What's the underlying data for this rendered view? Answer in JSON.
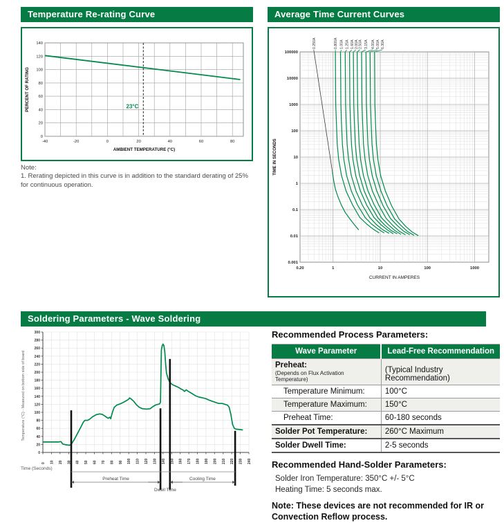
{
  "colors": {
    "header_green": "#067b44",
    "curve_green": "#008a4c",
    "leader_dark": "#3a3a3a",
    "grid_gray": "#9e9e9e",
    "grid_light": "#dedede",
    "grid_major": "#b3b3b3",
    "bar_black": "#111111"
  },
  "rerating": {
    "title": "Temperature Re-rating Curve",
    "note_label": "Note:",
    "note_text": "1. Rerating depicted in this curve is in addition to the standard derating of 25% for continuous operation.",
    "chart_data": {
      "type": "line",
      "xlabel": "AMBIENT TEMPERATURE (°C)",
      "ylabel": "PERCENT OF RATING",
      "xlim": [
        -40,
        87
      ],
      "ylim": [
        0,
        140
      ],
      "xticks": [
        -40,
        -20,
        0,
        20,
        40,
        60,
        80
      ],
      "yticks": [
        0,
        20,
        40,
        60,
        80,
        100,
        120,
        140
      ],
      "x_grid_step": 10,
      "y_grid_step": 20,
      "grid": true,
      "reference_line": {
        "x": 23,
        "label": "23°C"
      },
      "series": [
        {
          "name": "re-rating",
          "color": "#008a4c",
          "points": [
            [
              -40,
              121
            ],
            [
              85,
              85
            ]
          ]
        }
      ]
    }
  },
  "tcc": {
    "title": "Average Time Current Curves",
    "chart_data": {
      "type": "line",
      "xscale": "log",
      "yscale": "log",
      "xlabel": "CURRENT IN AMPERES",
      "ylabel": "TIME IN SECONDS",
      "xlim": [
        0.2,
        2000
      ],
      "ylim": [
        0.001,
        100000
      ],
      "xtick_labels": [
        "0.20",
        "1",
        "10",
        "100",
        "1000"
      ],
      "xticks": [
        0.2,
        1,
        10,
        100,
        1000
      ],
      "ytick_labels": [
        "100000",
        "10000",
        "1000",
        "100",
        "10",
        "1",
        "0.1",
        "0.01",
        "0.001"
      ],
      "yticks": [
        100000,
        10000,
        1000,
        100,
        10,
        1,
        0.1,
        0.01,
        0.001
      ],
      "curves": [
        {
          "label": "0.250A",
          "label_amps": 0.39,
          "color": "#008a4c",
          "leader_color": "#3a3a3a",
          "points": [
            [
              0.97,
              2.7
            ],
            [
              1.03,
              1.3
            ],
            [
              1.12,
              0.6
            ],
            [
              1.28,
              0.3
            ],
            [
              1.5,
              0.15
            ],
            [
              1.8,
              0.08
            ],
            [
              2.2,
              0.048
            ],
            [
              2.7,
              0.03
            ],
            [
              3.1,
              0.022
            ],
            [
              3.5,
              0.017
            ]
          ]
        },
        {
          "label": "0.800A",
          "label_amps": 1.12,
          "color": "#008a4c",
          "points": [
            [
              1.12,
              100000
            ],
            [
              1.14,
              1000
            ],
            [
              1.18,
              200
            ],
            [
              1.23,
              30
            ],
            [
              1.32,
              8
            ],
            [
              1.51,
              2
            ],
            [
              1.9,
              0.5
            ],
            [
              2.6,
              0.15
            ],
            [
              3.7,
              0.05
            ],
            [
              5.2,
              0.028
            ],
            [
              7.1,
              0.018
            ],
            [
              9.5,
              0.013
            ]
          ]
        },
        {
          "label": "1.00A",
          "label_amps": 1.5,
          "color": "#008a4c",
          "points": [
            [
              1.44,
              100000
            ],
            [
              1.47,
              1000
            ],
            [
              1.51,
              200
            ],
            [
              1.58,
              30
            ],
            [
              1.7,
              8
            ],
            [
              1.94,
              2
            ],
            [
              2.45,
              0.5
            ],
            [
              3.3,
              0.15
            ],
            [
              4.8,
              0.05
            ],
            [
              6.6,
              0.028
            ],
            [
              9.1,
              0.018
            ],
            [
              12.2,
              0.013
            ]
          ]
        },
        {
          "label": "1.25A",
          "label_amps": 1.95,
          "color": "#008a4c",
          "points": [
            [
              1.81,
              100000
            ],
            [
              1.85,
              1000
            ],
            [
              1.9,
              200
            ],
            [
              1.99,
              30
            ],
            [
              2.14,
              8
            ],
            [
              2.44,
              2
            ],
            [
              3.08,
              0.5
            ],
            [
              4.16,
              0.15
            ],
            [
              5.97,
              0.05
            ],
            [
              8.3,
              0.027
            ],
            [
              11.4,
              0.017
            ],
            [
              15.4,
              0.0125
            ]
          ]
        },
        {
          "label": "1.60A",
          "label_amps": 2.5,
          "color": "#008a4c",
          "points": [
            [
              2.24,
              100000
            ],
            [
              2.28,
              1000
            ],
            [
              2.35,
              200
            ],
            [
              2.46,
              30
            ],
            [
              2.64,
              8
            ],
            [
              3.02,
              2
            ],
            [
              3.81,
              0.5
            ],
            [
              5.15,
              0.15
            ],
            [
              7.4,
              0.05
            ],
            [
              10.3,
              0.027
            ],
            [
              14.1,
              0.017
            ],
            [
              19,
              0.012
            ]
          ]
        },
        {
          "label": "2.00A",
          "label_amps": 3.05,
          "color": "#008a4c",
          "points": [
            [
              2.7,
              100000
            ],
            [
              2.75,
              1000
            ],
            [
              2.84,
              200
            ],
            [
              2.97,
              30
            ],
            [
              3.19,
              8
            ],
            [
              3.65,
              2
            ],
            [
              4.59,
              0.5
            ],
            [
              6.21,
              0.15
            ],
            [
              8.9,
              0.049
            ],
            [
              12.4,
              0.026
            ],
            [
              17,
              0.016
            ],
            [
              23,
              0.012
            ]
          ]
        },
        {
          "label": "2.50A",
          "label_amps": 3.7,
          "color": "#008a4c",
          "points": [
            [
              3.25,
              100000
            ],
            [
              3.32,
              1000
            ],
            [
              3.41,
              200
            ],
            [
              3.58,
              30
            ],
            [
              3.84,
              8
            ],
            [
              4.39,
              2
            ],
            [
              5.53,
              0.5
            ],
            [
              7.48,
              0.15
            ],
            [
              10.7,
              0.048
            ],
            [
              15,
              0.026
            ],
            [
              20.5,
              0.016
            ],
            [
              27.6,
              0.0115
            ]
          ]
        },
        {
          "label": "3.15A",
          "label_amps": 4.9,
          "color": "#008a4c",
          "points": [
            [
              4.03,
              100000
            ],
            [
              4.11,
              1000
            ],
            [
              4.23,
              200
            ],
            [
              4.43,
              30
            ],
            [
              4.76,
              8
            ],
            [
              5.44,
              2
            ],
            [
              6.85,
              0.5
            ],
            [
              9.27,
              0.15
            ],
            [
              13.3,
              0.047
            ],
            [
              18.5,
              0.025
            ],
            [
              25.4,
              0.015
            ],
            [
              34.3,
              0.011
            ]
          ]
        },
        {
          "label": "4.00A",
          "label_amps": 6.9,
          "color": "#008a4c",
          "points": [
            [
              5,
              100000
            ],
            [
              5.1,
              1000
            ],
            [
              5.25,
              200
            ],
            [
              5.5,
              30
            ],
            [
              5.9,
              8
            ],
            [
              6.75,
              2
            ],
            [
              8.5,
              0.5
            ],
            [
              11.5,
              0.14
            ],
            [
              16.5,
              0.046
            ],
            [
              23,
              0.025
            ],
            [
              31.5,
              0.015
            ],
            [
              42.5,
              0.011
            ]
          ]
        },
        {
          "label": "5.00A",
          "label_amps": 8.7,
          "color": "#008a4c",
          "points": [
            [
              6.1,
              100000
            ],
            [
              6.22,
              1000
            ],
            [
              6.41,
              200
            ],
            [
              6.71,
              30
            ],
            [
              7.2,
              8
            ],
            [
              8.24,
              2
            ],
            [
              10.4,
              0.5
            ],
            [
              14,
              0.14
            ],
            [
              20.1,
              0.045
            ],
            [
              28.1,
              0.024
            ],
            [
              38.4,
              0.0145
            ],
            [
              51.9,
              0.0105
            ]
          ]
        },
        {
          "label": "6.30A",
          "label_amps": 11.0,
          "color": "#008a4c",
          "points": [
            [
              7.56,
              100000
            ],
            [
              7.71,
              1000
            ],
            [
              7.94,
              200
            ],
            [
              8.32,
              30
            ],
            [
              8.92,
              8
            ],
            [
              10.2,
              2
            ],
            [
              12.9,
              0.5
            ],
            [
              17.4,
              0.14
            ],
            [
              25,
              0.044
            ],
            [
              34.8,
              0.023
            ],
            [
              47.6,
              0.014
            ],
            [
              64.3,
              0.0102
            ]
          ]
        }
      ]
    }
  },
  "soldering": {
    "title": "Soldering Parameters - Wave Soldering",
    "chart_data": {
      "type": "line",
      "xlabel": "Time (Seconds)",
      "ylabel": "Temperature (°C) - Measured on bottom side of board",
      "xlim": [
        0,
        240
      ],
      "ylim": [
        0,
        300
      ],
      "xticks": [
        0,
        10,
        20,
        30,
        40,
        50,
        60,
        70,
        80,
        90,
        100,
        110,
        120,
        130,
        140,
        150,
        160,
        170,
        180,
        190,
        200,
        210,
        220,
        230,
        240
      ],
      "yticks": [
        0,
        20,
        40,
        60,
        80,
        100,
        120,
        140,
        160,
        180,
        200,
        220,
        240,
        260,
        280,
        300
      ],
      "grid": true,
      "profile": [
        [
          0,
          26
        ],
        [
          10,
          26
        ],
        [
          18,
          26
        ],
        [
          21,
          27
        ],
        [
          23,
          21
        ],
        [
          27,
          19
        ],
        [
          31,
          18
        ],
        [
          33,
          20
        ],
        [
          36,
          30
        ],
        [
          40,
          46
        ],
        [
          44,
          62
        ],
        [
          47,
          75
        ],
        [
          49,
          80
        ],
        [
          52,
          80
        ],
        [
          54,
          82
        ],
        [
          58,
          89
        ],
        [
          62,
          94
        ],
        [
          66,
          96
        ],
        [
          69,
          95
        ],
        [
          72,
          91
        ],
        [
          74,
          88
        ],
        [
          76,
          85
        ],
        [
          78,
          88
        ],
        [
          79,
          84
        ],
        [
          81,
          100
        ],
        [
          83,
          112
        ],
        [
          86,
          118
        ],
        [
          90,
          121
        ],
        [
          94,
          125
        ],
        [
          98,
          130
        ],
        [
          100,
          133
        ],
        [
          101,
          136
        ],
        [
          103,
          133
        ],
        [
          106,
          127
        ],
        [
          109,
          119
        ],
        [
          112,
          113
        ],
        [
          116,
          109
        ],
        [
          121,
          108
        ],
        [
          125,
          109
        ],
        [
          128,
          114
        ],
        [
          131,
          118
        ],
        [
          134,
          120
        ],
        [
          136,
          121
        ],
        [
          137,
          125
        ],
        [
          138,
          255
        ],
        [
          139,
          266
        ],
        [
          140,
          270
        ],
        [
          141,
          266
        ],
        [
          142,
          252
        ],
        [
          143,
          220
        ],
        [
          144,
          198
        ],
        [
          146,
          183
        ],
        [
          148,
          174
        ],
        [
          151,
          169
        ],
        [
          155,
          165
        ],
        [
          158,
          162
        ],
        [
          161,
          158
        ],
        [
          163,
          156
        ],
        [
          165,
          152
        ],
        [
          167,
          156
        ],
        [
          169,
          153
        ],
        [
          172,
          149
        ],
        [
          175,
          145
        ],
        [
          178,
          141
        ],
        [
          182,
          138
        ],
        [
          186,
          136
        ],
        [
          190,
          134
        ],
        [
          194,
          130
        ],
        [
          198,
          127
        ],
        [
          202,
          124
        ],
        [
          205,
          122
        ],
        [
          209,
          122
        ],
        [
          212,
          120
        ],
        [
          215,
          118
        ],
        [
          217,
          113
        ],
        [
          219,
          95
        ],
        [
          221,
          70
        ],
        [
          223,
          60
        ],
        [
          225,
          58
        ],
        [
          229,
          57
        ],
        [
          233,
          56
        ]
      ],
      "bars": [
        {
          "t": 33,
          "top": 105
        },
        {
          "t": 137,
          "top": 110
        },
        {
          "t": 148,
          "top": 233
        },
        {
          "t": 224,
          "top": 54
        }
      ],
      "annotations": {
        "overall": {
          "from": 33,
          "to": 224
        },
        "spans": [
          {
            "label": "Preheat Time",
            "from": 33,
            "to": 137
          },
          {
            "label": "Cooling Time",
            "from": 148,
            "to": 224
          }
        ],
        "dwell": {
          "label": "Dwell Time",
          "from": 137,
          "to": 148
        }
      }
    }
  },
  "process": {
    "heading": "Recommended Process Parameters:",
    "table": {
      "headers": [
        "Wave Parameter",
        "Lead-Free Recommendation"
      ],
      "rows": [
        {
          "param": "Preheat:",
          "param_sub": "(Depends on Flux Activation Temperature)",
          "value": "(Typical Industry Recommendation)",
          "bold": true,
          "shade": true,
          "value_small": true
        },
        {
          "param": "Temperature Minimum:",
          "value": "100°C",
          "indent": true
        },
        {
          "param": "Temperature Maximum:",
          "value": "150°C",
          "indent": true,
          "shade": true
        },
        {
          "param": "Preheat Time:",
          "value": "60-180 seconds",
          "indent": true
        },
        {
          "param": "Solder Pot Temperature:",
          "value": "260°C Maximum",
          "bold": true,
          "group": true,
          "shade": true
        },
        {
          "param": "Solder Dwell Time:",
          "value": "2-5 seconds",
          "bold": true,
          "group": true
        }
      ]
    }
  },
  "hand_solder": {
    "heading": "Recommended Hand-Solder Parameters:",
    "lines": [
      "Solder Iron Temperature: 350°C +/- 5°C",
      "Heating Time: 5 seconds max."
    ],
    "note": "Note: These devices are not recommended for IR or Convection Reflow process."
  }
}
